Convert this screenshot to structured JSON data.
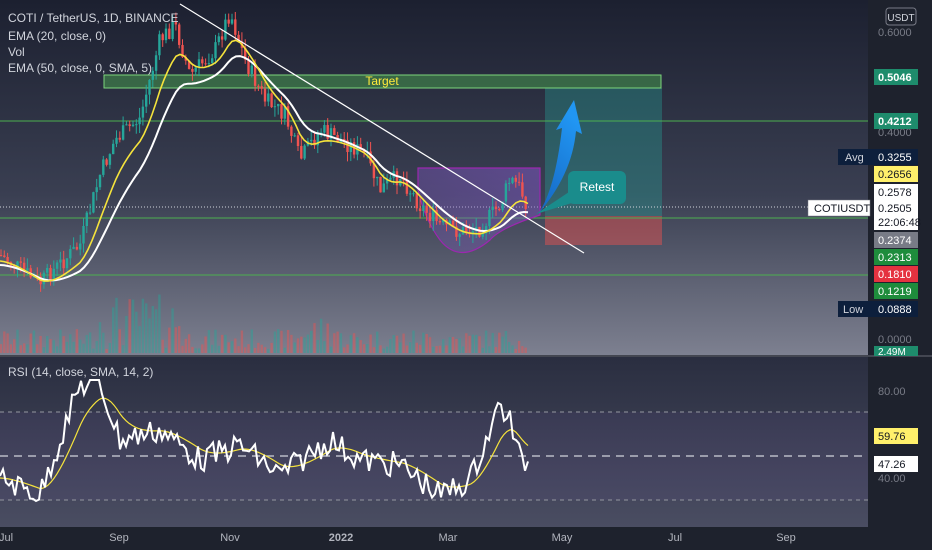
{
  "chart_data": {
    "type": "line",
    "symbol_header": "COTI / TetherUS, 1D, BINANCE",
    "currency_button": "USDT",
    "indicator_labels": [
      "EMA (20, close, 0)",
      "Vol",
      "EMA (50, close, 0, SMA, 5)"
    ],
    "rsi_label": "RSI (14, close, SMA, 14, 2)",
    "x_ticks": [
      "Jul",
      "Sep",
      "Nov",
      "2022",
      "Mar",
      "May",
      "Jul",
      "Sep"
    ],
    "price_axis_ticks": [
      "0.6000",
      "0.4000",
      "0.0000"
    ],
    "rsi_axis_ticks": [
      "80.00",
      "40.00"
    ],
    "annotations": {
      "target": "Target",
      "retest": "Retest"
    },
    "price_badges": [
      {
        "value": "0.5046",
        "color": "#1e8c6c"
      },
      {
        "value": "0.4212",
        "color": "#1e8c6c"
      },
      {
        "value": "0.3255",
        "color": "#0d1f3c",
        "prefix": "Avg"
      },
      {
        "value": "0.2656",
        "color": "#fff06b"
      },
      {
        "value": "0.2578",
        "color": "#ffffff"
      },
      {
        "value": "0.2505",
        "color": "#ffffff",
        "prefix": "COTIUSDT",
        "countdown": "22:06:48"
      },
      {
        "value": "0.2374",
        "color": "#787b86"
      },
      {
        "value": "0.2313",
        "color": "#1e8c3c"
      },
      {
        "value": "0.1810",
        "color": "#e53240"
      },
      {
        "value": "0.1219",
        "color": "#1e8c3c"
      },
      {
        "value": "0.0888",
        "color": "#0d1f3c",
        "prefix": "Low"
      }
    ],
    "volume_badge": "2.49M",
    "rsi_badges": [
      {
        "value": "59.76",
        "color": "#fff06b"
      },
      {
        "value": "47.26",
        "color": "#ffffff"
      }
    ],
    "colors": {
      "up": "#26a69a",
      "down": "#ef5350",
      "ema20": "#f5e33c",
      "ema50": "#ffffff",
      "rsi": "#ffffff",
      "rsi_ma": "#f5e33c",
      "target_zone": "#4caf50",
      "retest": "#1a8c8c",
      "arrow": "#1e88e5"
    }
  }
}
